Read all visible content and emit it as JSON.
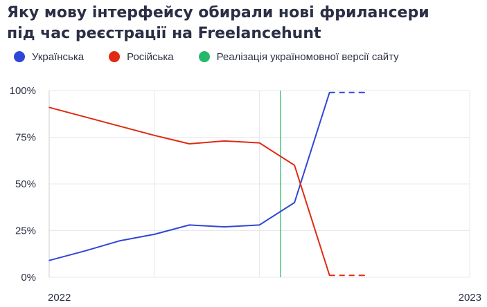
{
  "title_line1": "Яку мову інтерфейсу обирали нові фрилансери",
  "title_line2": "під час реєстрації на Freelancehunt",
  "legend": [
    {
      "label": "Українська",
      "color": "#2f46d6"
    },
    {
      "label": "Російська",
      "color": "#e02a12"
    },
    {
      "label": "Реалізація україномовної версії сайту",
      "color": "#25b86a"
    }
  ],
  "chart_data": {
    "type": "line",
    "x": [
      0,
      1,
      2,
      3,
      4,
      5,
      6,
      7,
      8,
      9
    ],
    "xlim": [
      0,
      12
    ],
    "x_tick_labels": [
      {
        "at": 0,
        "label": "2022"
      },
      {
        "at": 12,
        "label": "2023"
      }
    ],
    "ylim": [
      0,
      100
    ],
    "y_ticks": [
      0,
      25,
      50,
      75,
      100
    ],
    "y_tick_labels": [
      "0%",
      "25%",
      "50%",
      "75%",
      "100%"
    ],
    "grid": true,
    "series": [
      {
        "name": "Українська",
        "color": "#2f46d6",
        "values": [
          9,
          14,
          19.5,
          23,
          28,
          27,
          28,
          40,
          99,
          99
        ],
        "dashed_from_index": 8
      },
      {
        "name": "Російська",
        "color": "#e02a12",
        "values": [
          91,
          86,
          81,
          76,
          71.5,
          73,
          72,
          60,
          1,
          1
        ],
        "dashed_from_index": 8
      }
    ],
    "annotation_vline": {
      "x": 6.6,
      "label": "Реалізація україномовної версії сайту",
      "color": "#25b86a"
    }
  }
}
